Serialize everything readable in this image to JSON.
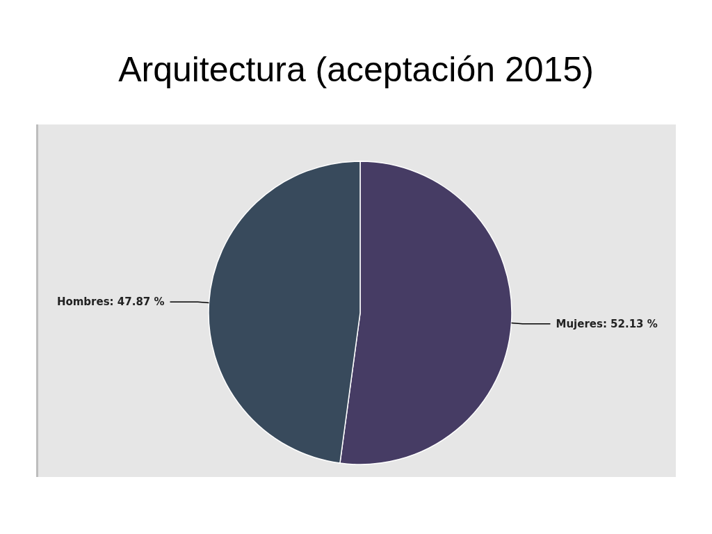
{
  "chart_data": {
    "type": "pie",
    "title": "Arquitectura (aceptación 2015)",
    "categories": [
      "Mujeres",
      "Hombres"
    ],
    "values": [
      52.13,
      47.87
    ],
    "colors": [
      "#463c64",
      "#384a5c"
    ],
    "value_labels": [
      "52.13 %",
      "47.87 %"
    ]
  }
}
